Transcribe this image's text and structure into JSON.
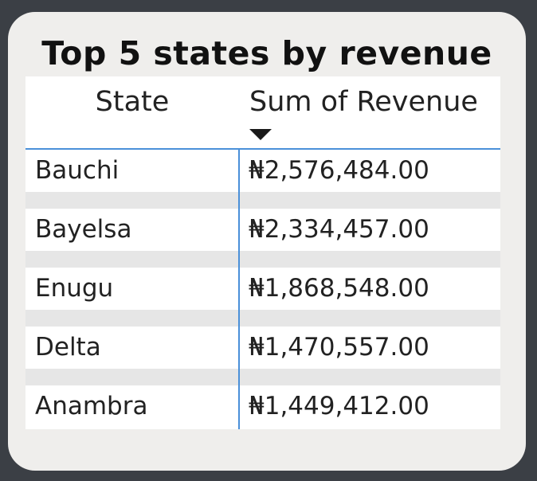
{
  "visual": {
    "title": "Top 5 states by revenue",
    "columns": {
      "state": "State",
      "revenue": "Sum of Revenue"
    },
    "sort": {
      "column": "revenue",
      "direction": "descending",
      "icon": "sort-descending-icon"
    },
    "rows": [
      {
        "state": "Bauchi",
        "revenue": "₦2,576,484.00"
      },
      {
        "state": "Bayelsa",
        "revenue": "₦2,334,457.00"
      },
      {
        "state": "Enugu",
        "revenue": "₦1,868,548.00"
      },
      {
        "state": "Delta",
        "revenue": "₦1,470,557.00"
      },
      {
        "state": "Anambra",
        "revenue": "₦1,449,412.00"
      }
    ]
  },
  "colors": {
    "page_background": "#3b3f45",
    "card_background": "#efeeec",
    "grid_accent": "#4a90d9",
    "band": "#e6e6e6"
  }
}
